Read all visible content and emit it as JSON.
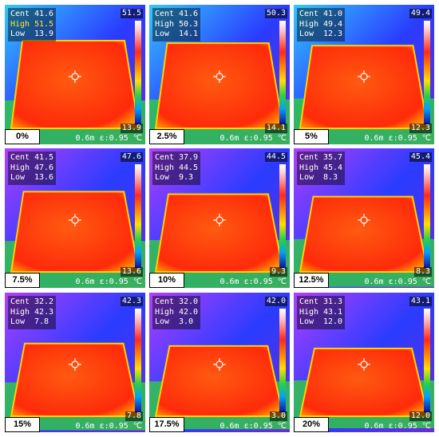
{
  "panels": [
    {
      "cent": "41.6",
      "high": "51.5",
      "low": "13.9",
      "max": "51.5",
      "min": "13.9",
      "label": "0%",
      "dist": "0.6m",
      "emis": "ε:0.95",
      "unit": "℃",
      "highlight": "high"
    },
    {
      "cent": "41.6",
      "high": "50.3",
      "low": "14.1",
      "max": "50.3",
      "min": "14.1",
      "label": "2.5%",
      "dist": "0.6m",
      "emis": "ε:0.95",
      "unit": "℃",
      "highlight": ""
    },
    {
      "cent": "41.0",
      "high": "49.4",
      "low": "12.3",
      "max": "49.4",
      "min": "12.3",
      "label": "5%",
      "dist": "0.6m",
      "emis": "ε:0.95",
      "unit": "℃",
      "highlight": ""
    },
    {
      "cent": "41.5",
      "high": "47.6",
      "low": "13.6",
      "max": "47.6",
      "min": "13.6",
      "label": "7.5%",
      "dist": "0.6m",
      "emis": "ε:0.95",
      "unit": "℃",
      "highlight": ""
    },
    {
      "cent": "37.9",
      "high": "44.5",
      "low": "9.3",
      "max": "44.5",
      "min": "9.3",
      "label": "10%",
      "dist": "0.6m",
      "emis": "ε:0.95",
      "unit": "℃",
      "highlight": ""
    },
    {
      "cent": "35.7",
      "high": "45.4",
      "low": "8.3",
      "max": "45.4",
      "min": "8.3",
      "label": "12.5%",
      "dist": "0.6m",
      "emis": "ε:0.95",
      "unit": "℃",
      "highlight": ""
    },
    {
      "cent": "32.2",
      "high": "42.3",
      "low": "7.8",
      "max": "42.3",
      "min": "7.8",
      "label": "15%",
      "dist": "0.6m",
      "emis": "ε:0.95",
      "unit": "℃",
      "highlight": ""
    },
    {
      "cent": "32.0",
      "high": "42.0",
      "low": "3.0",
      "max": "42.0",
      "min": "3.0",
      "label": "17.5%",
      "dist": "0.6m",
      "emis": "ε:0.95",
      "unit": "℃",
      "highlight": ""
    },
    {
      "cent": "31.3",
      "high": "43.1",
      "low": "12.0",
      "max": "43.1",
      "min": "12.0",
      "label": "20%",
      "dist": "0.6m",
      "emis": "ε:0.95",
      "unit": "℃",
      "highlight": ""
    }
  ],
  "readout_labels": {
    "cent": "Cent",
    "high": "High",
    "low": "Low"
  },
  "colors": {
    "highlight_text": "#ffe14a",
    "plate": "#ff5a10",
    "plate_hot": "#ff2a0a",
    "background_cool": "#2a3cff",
    "background_warm": "#b040ff",
    "grass": "#30d040"
  }
}
